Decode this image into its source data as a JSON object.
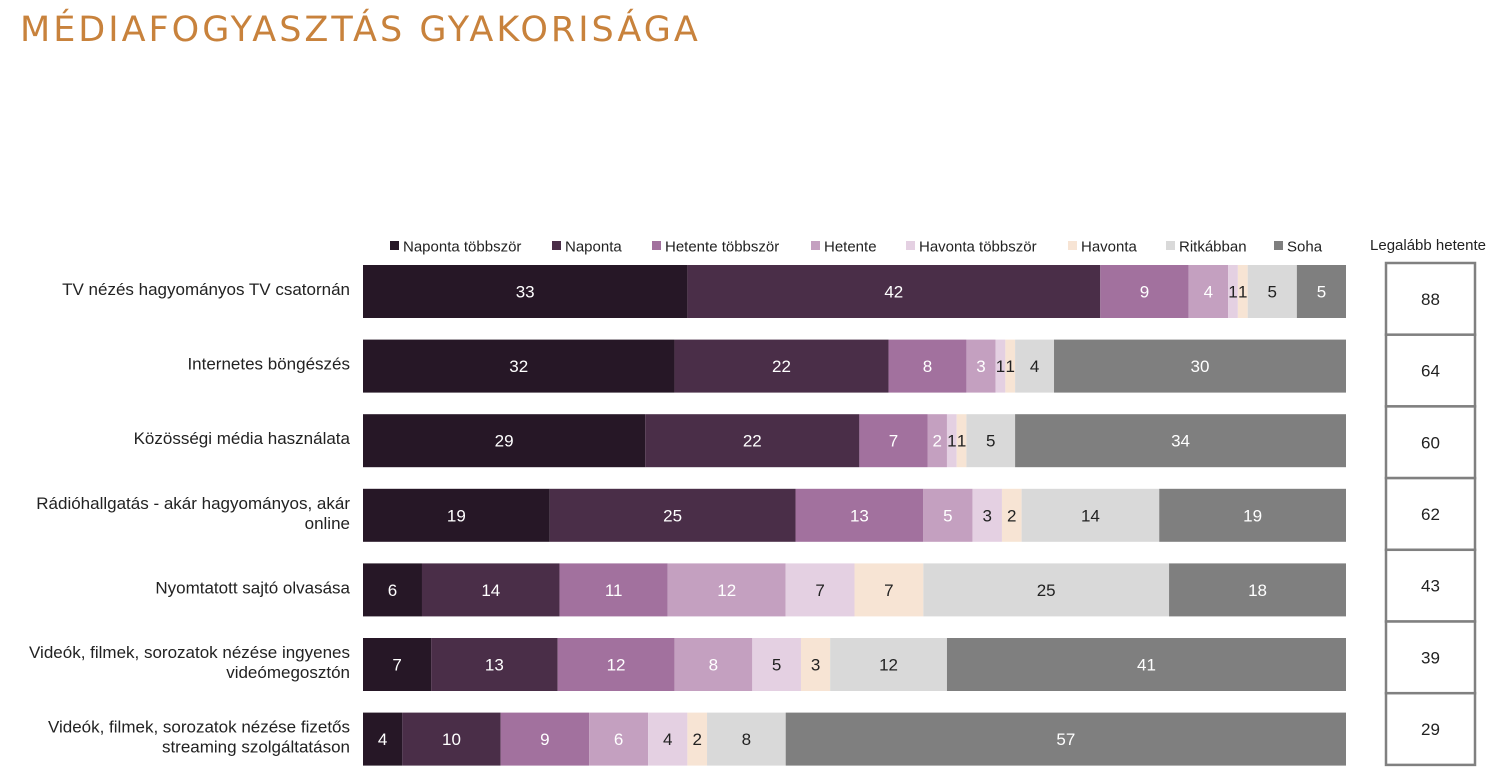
{
  "title": "MÉDIAFOGYASZTÁS GYAKORISÁGA",
  "chart_data": {
    "type": "bar",
    "orientation": "horizontal",
    "stacked": true,
    "categories": [
      [
        "TV nézés hagyományos TV csatornán"
      ],
      [
        "Internetes böngészés"
      ],
      [
        "Közösségi média használata"
      ],
      [
        "Rádióhallgatás - akár hagyományos, akár",
        "online"
      ],
      [
        "Nyomtatott sajtó olvasása"
      ],
      [
        "Videók, filmek, sorozatok nézése ingyenes",
        "videómegosztón"
      ],
      [
        "Videók, filmek, sorozatok nézése fizetős",
        "streaming szolgáltatáson"
      ]
    ],
    "series": [
      {
        "name": "Naponta többször",
        "color": "#261726",
        "label_color": "#ffffff",
        "values": [
          33,
          32,
          29,
          19,
          6,
          7,
          4
        ]
      },
      {
        "name": "Naponta",
        "color": "#4A2E48",
        "label_color": "#ffffff",
        "values": [
          42,
          22,
          22,
          25,
          14,
          13,
          10
        ]
      },
      {
        "name": "Hetente többször",
        "color": "#A2719E",
        "label_color": "#ffffff",
        "values": [
          9,
          8,
          7,
          13,
          11,
          12,
          9
        ]
      },
      {
        "name": "Hetente",
        "color": "#C4A0C0",
        "label_color": "#ffffff",
        "values": [
          4,
          3,
          2,
          5,
          12,
          8,
          6
        ]
      },
      {
        "name": "Havonta többször",
        "color": "#E4D0E2",
        "label_color": "#222222",
        "values": [
          1,
          1,
          1,
          3,
          7,
          5,
          4
        ]
      },
      {
        "name": "Havonta",
        "color": "#F7E4D4",
        "label_color": "#222222",
        "values": [
          1,
          1,
          1,
          2,
          7,
          3,
          2
        ]
      },
      {
        "name": "Ritkábban",
        "color": "#D9D9D9",
        "label_color": "#222222",
        "values": [
          5,
          4,
          5,
          14,
          25,
          12,
          8
        ]
      },
      {
        "name": "Soha",
        "color": "#7F7F7F",
        "label_color": "#ffffff",
        "values": [
          5,
          30,
          34,
          19,
          18,
          41,
          57
        ]
      }
    ],
    "side_column": {
      "header": "Legalább hetente",
      "values": [
        88,
        64,
        60,
        62,
        43,
        39,
        29
      ]
    },
    "legend_position": "top",
    "grid": false
  }
}
